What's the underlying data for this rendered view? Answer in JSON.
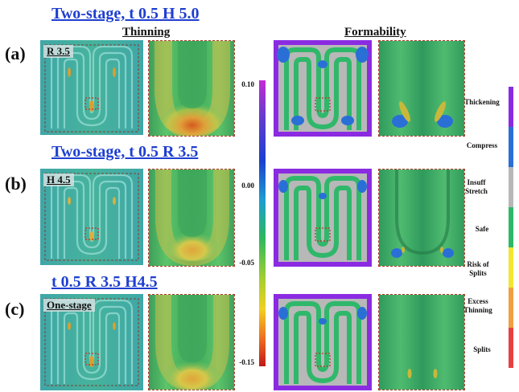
{
  "rows": [
    {
      "label": "(a)",
      "title": "Two-stage, t 0.5 H 5.0",
      "tag": "R 3.5",
      "zoom_hot": "strong",
      "form_variant": "a"
    },
    {
      "label": "(b)",
      "title": "Two-stage, t 0.5 R 3.5",
      "tag": "H 4.5",
      "zoom_hot": "medium",
      "form_variant": "b"
    },
    {
      "label": "(c)",
      "title": "t 0.5 R 3.5 H4.5",
      "tag": "One-stage",
      "zoom_hot": "medium",
      "form_variant": "c"
    }
  ],
  "columns": {
    "thinning": "Thinning",
    "formability": "Formability"
  },
  "scale_ticks": [
    "0.10",
    "0.00",
    "-0.05",
    "-0.15"
  ],
  "legend": [
    {
      "label": "Thickening",
      "color": "#8a2be2"
    },
    {
      "label": "Compress",
      "color": "#2a6fd6"
    },
    {
      "label": "Insuff Stretch",
      "color": "#b8b8b8"
    },
    {
      "label": "Safe",
      "color": "#2fb86a"
    },
    {
      "label": "Risk of Splits",
      "color": "#f2e630"
    },
    {
      "label": "Excess Thinning",
      "color": "#f0a040"
    },
    {
      "label": "Splits",
      "color": "#e84040"
    }
  ]
}
